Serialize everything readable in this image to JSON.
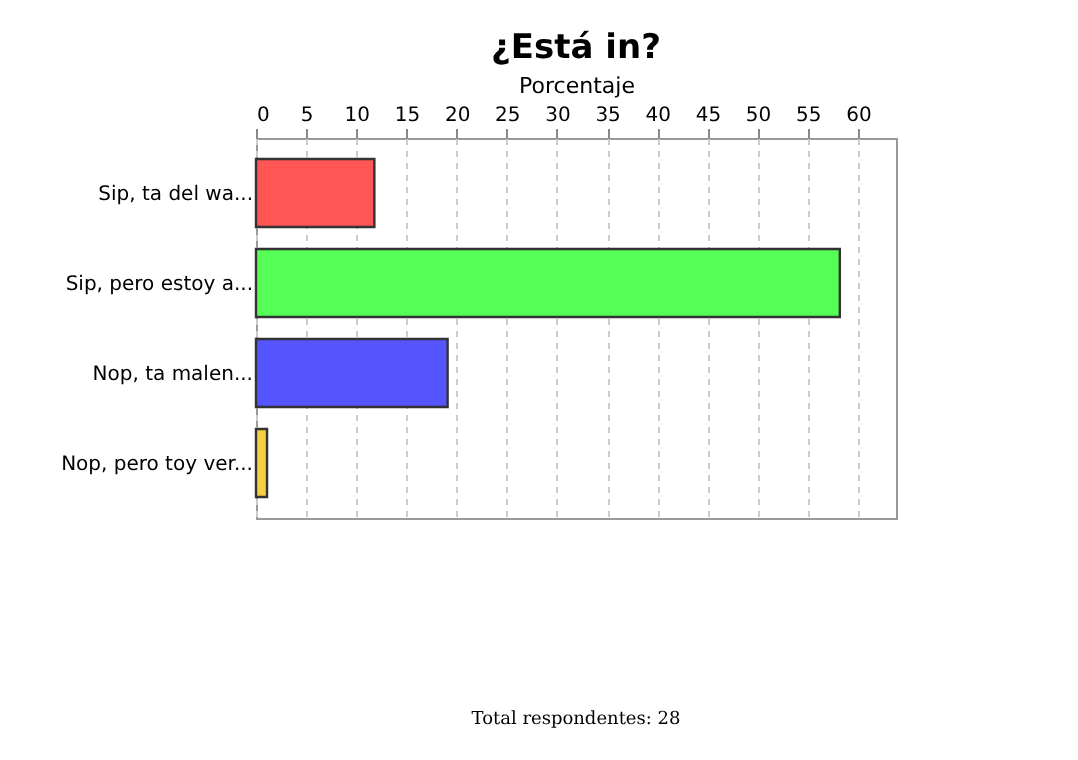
{
  "chart_data": {
    "type": "bar",
    "orientation": "horizontal",
    "title": "¿Está in?",
    "xlabel": "Porcentaje",
    "categories": [
      "Sip, ta del wa...",
      "Sip, pero estoy a...",
      "Nop, ta malen...",
      "Nop, pero toy ver..."
    ],
    "values": [
      11.8,
      58.2,
      19.1,
      1.1
    ],
    "colors": [
      "#ff5555",
      "#55ff55",
      "#5555ff",
      "#f5d040"
    ],
    "xlim": [
      0,
      63.8
    ],
    "xticks": [
      0,
      5,
      10,
      15,
      20,
      25,
      30,
      35,
      40,
      45,
      50,
      55,
      60
    ],
    "grid": "x",
    "annotations": [
      "Total respondentes: 28"
    ]
  }
}
